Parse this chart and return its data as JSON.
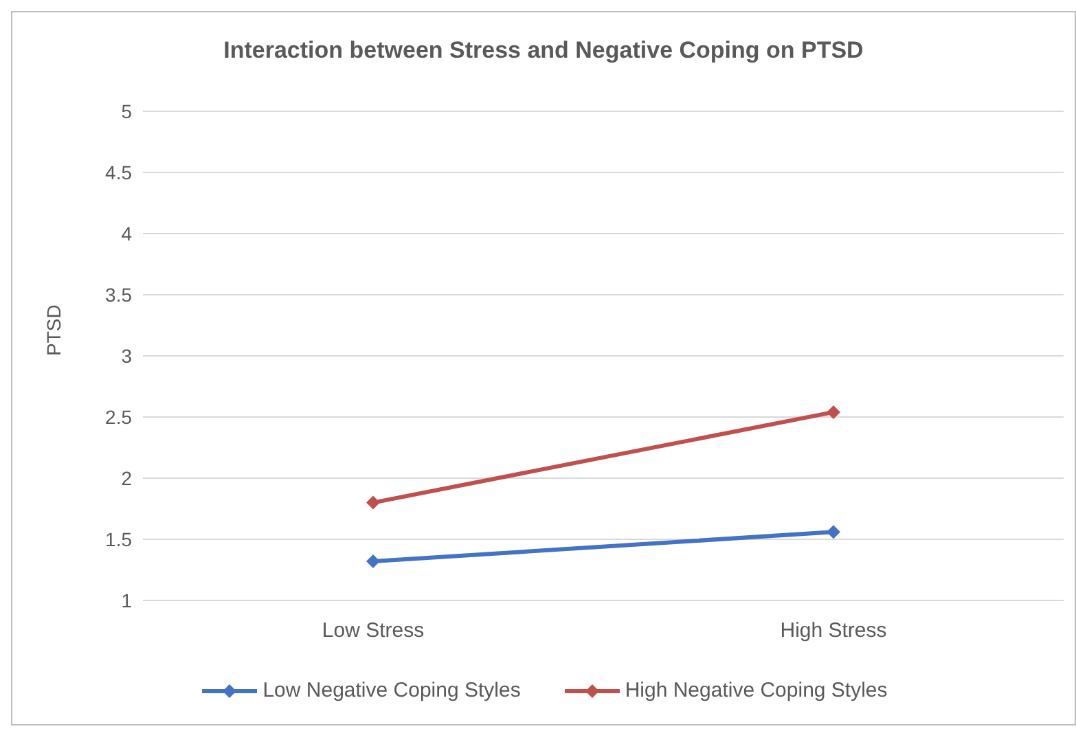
{
  "chart_data": {
    "type": "line",
    "title": "Interaction between Stress and Negative Coping on PTSD",
    "ylabel": "PTSD",
    "categories": [
      "Low Stress",
      "High Stress"
    ],
    "series": [
      {
        "name": "Low Negative Coping Styles",
        "color": "#4472c4",
        "values": [
          1.32,
          1.56
        ]
      },
      {
        "name": "High Negative Coping Styles",
        "color": "#c0504d",
        "values": [
          1.8,
          2.54
        ]
      }
    ],
    "ylim": [
      1,
      5
    ],
    "yticks": [
      1,
      1.5,
      2,
      2.5,
      3,
      3.5,
      4,
      4.5,
      5
    ],
    "grid": "y",
    "legend": "bottom",
    "marker": "diamond",
    "line_style": "solid"
  }
}
